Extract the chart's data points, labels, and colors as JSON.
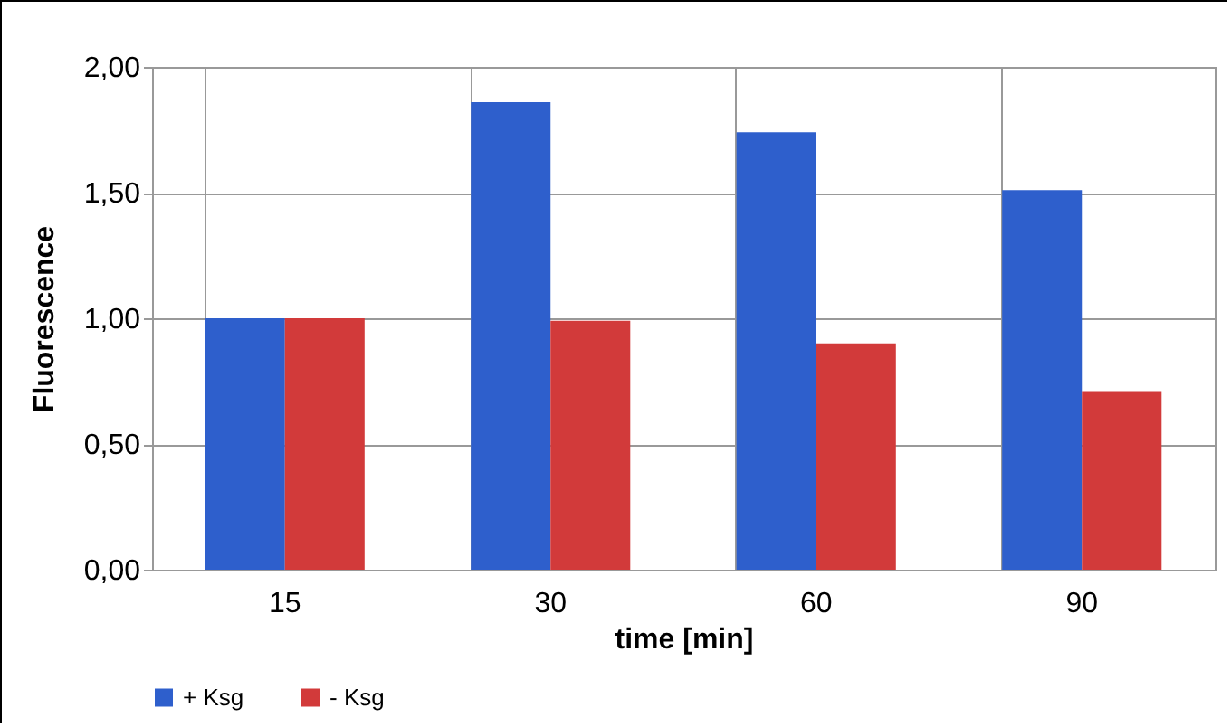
{
  "chart_data": {
    "type": "bar",
    "xlabel": "time [min]",
    "ylabel": "Fluorescence",
    "categories": [
      "15",
      "30",
      "60",
      "90"
    ],
    "series": [
      {
        "name": "+ Ksg",
        "color": "#2e5fcc",
        "values": [
          1.0,
          1.86,
          1.74,
          1.51
        ]
      },
      {
        "name": "- Ksg",
        "color": "#d23a3a",
        "values": [
          1.0,
          0.99,
          0.9,
          0.71
        ]
      }
    ],
    "ylim": [
      0,
      2
    ],
    "yticks": [
      {
        "value": 0,
        "label": "0,00"
      },
      {
        "value": 0.5,
        "label": "0,50"
      },
      {
        "value": 1,
        "label": "1,00"
      },
      {
        "value": 1.5,
        "label": "1,50"
      },
      {
        "value": 2,
        "label": "2,00"
      }
    ],
    "grid": true,
    "legend": "bottom"
  }
}
